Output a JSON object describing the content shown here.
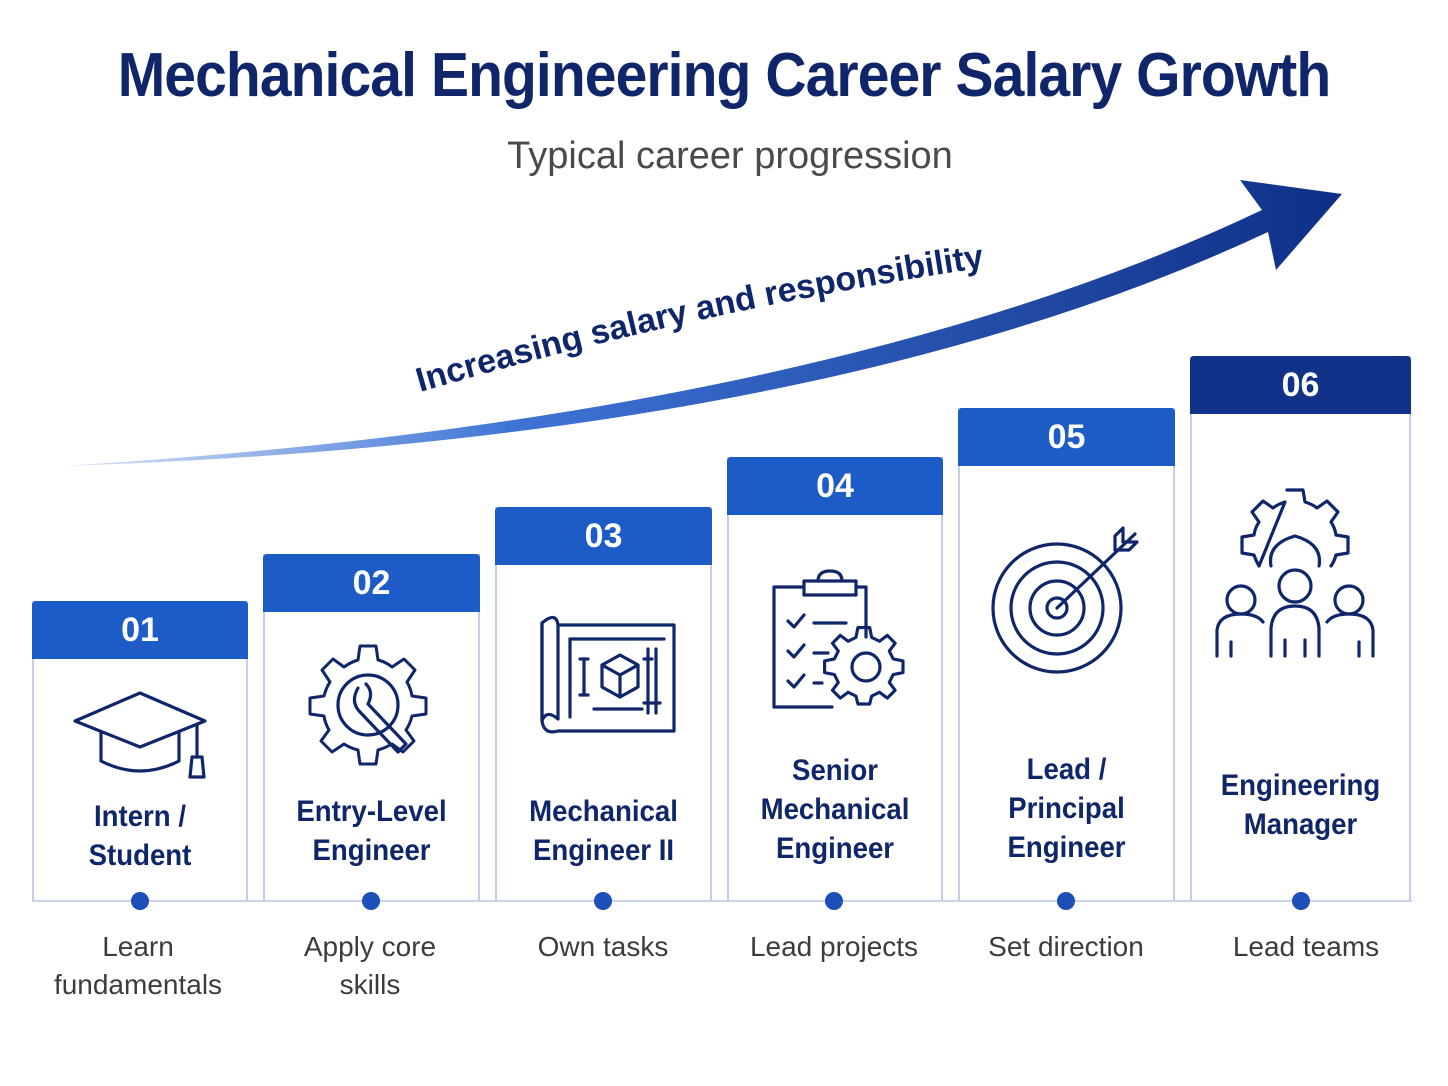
{
  "title": "Mechanical Engineering Career Salary Growth",
  "subtitle": "Typical career progression",
  "arrow_label": "Increasing salary and responsibility",
  "colors": {
    "title": "#10266a",
    "header_light": "#1d5bc6",
    "header_dark": "#12328a",
    "dot": "#1c4fb8"
  },
  "steps": [
    {
      "number": "01",
      "title": "Intern /\nStudent",
      "description": "Learn\nfundamentals",
      "icon": "graduation-cap-icon"
    },
    {
      "number": "02",
      "title": "Entry-Level\nEngineer",
      "description": "Apply core\nskills",
      "icon": "gear-wrench-icon"
    },
    {
      "number": "03",
      "title": "Mechanical\nEngineer II",
      "description": "Own tasks",
      "icon": "blueprint-icon"
    },
    {
      "number": "04",
      "title": "Senior\nMechanical\nEngineer",
      "description": "Lead projects",
      "icon": "clipboard-gear-icon"
    },
    {
      "number": "05",
      "title": "Lead /\nPrincipal\nEngineer",
      "description": "Set direction",
      "icon": "target-icon"
    },
    {
      "number": "06",
      "title": "Engineering\nManager",
      "description": "Lead teams",
      "icon": "team-gear-icon"
    }
  ]
}
